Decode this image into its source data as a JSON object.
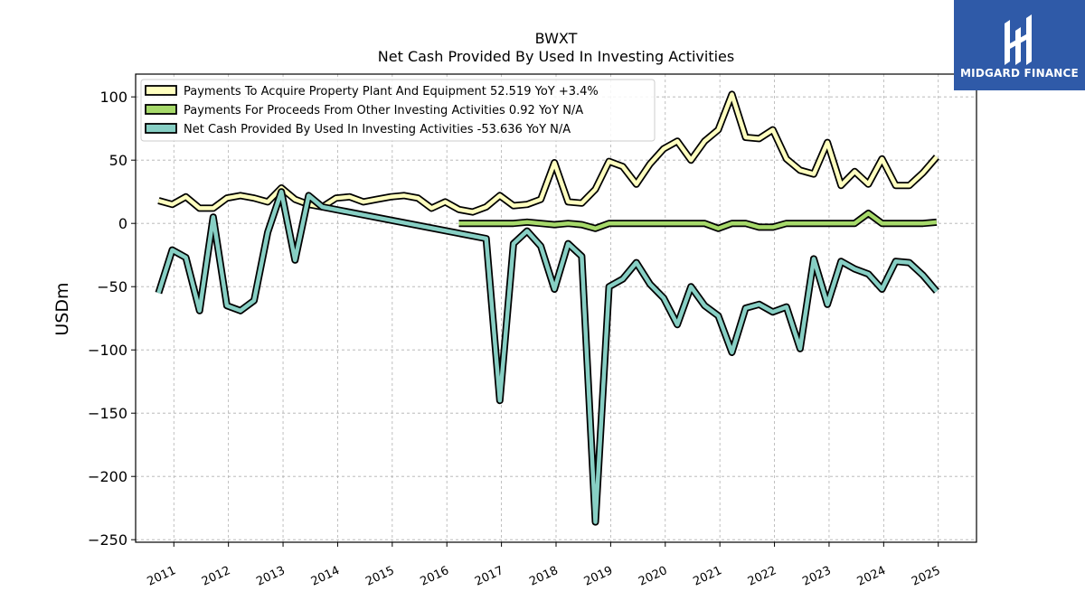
{
  "brand": {
    "name": "MIDGARD FINANCE",
    "icon": "midgard-logo-icon",
    "bg_color": "#2f5aa8"
  },
  "chart_data": {
    "type": "line",
    "title": "BWXT",
    "subtitle": "Net Cash Provided By Used In Investing Activities",
    "ylabel": "USDm",
    "xlabel": "",
    "ylim": [
      -252,
      118
    ],
    "xlim": [
      2010.3,
      2025.7
    ],
    "yticks": [
      100,
      50,
      0,
      -50,
      -100,
      -150,
      -200,
      -250
    ],
    "xticks": [
      2011,
      2012,
      2013,
      2014,
      2015,
      2016,
      2017,
      2018,
      2019,
      2020,
      2021,
      2022,
      2023,
      2024,
      2025
    ],
    "grid": true,
    "legend_position": "top-left",
    "series": [
      {
        "name": "Payments To Acquire Property Plant And Equipment  52.519 YoY +3.4%",
        "color": "#ffffbf",
        "points": [
          [
            2010.72,
            18
          ],
          [
            2010.97,
            15
          ],
          [
            2011.22,
            21
          ],
          [
            2011.47,
            12
          ],
          [
            2011.72,
            12
          ],
          [
            2011.97,
            20
          ],
          [
            2012.22,
            22
          ],
          [
            2012.47,
            20
          ],
          [
            2012.72,
            17
          ],
          [
            2012.97,
            28
          ],
          [
            2013.22,
            19
          ],
          [
            2013.47,
            15
          ],
          [
            2013.72,
            13
          ],
          [
            2013.97,
            20
          ],
          [
            2014.22,
            21
          ],
          [
            2014.47,
            17
          ],
          [
            2014.72,
            19
          ],
          [
            2014.97,
            21
          ],
          [
            2015.22,
            22
          ],
          [
            2015.47,
            20
          ],
          [
            2015.72,
            12
          ],
          [
            2015.97,
            17
          ],
          [
            2016.22,
            11
          ],
          [
            2016.47,
            9
          ],
          [
            2016.72,
            13
          ],
          [
            2016.97,
            22
          ],
          [
            2017.22,
            14
          ],
          [
            2017.47,
            15
          ],
          [
            2017.72,
            19
          ],
          [
            2017.97,
            48
          ],
          [
            2018.22,
            17
          ],
          [
            2018.47,
            16
          ],
          [
            2018.72,
            27
          ],
          [
            2018.97,
            49
          ],
          [
            2019.22,
            45
          ],
          [
            2019.47,
            31
          ],
          [
            2019.72,
            47
          ],
          [
            2019.97,
            59
          ],
          [
            2020.22,
            65
          ],
          [
            2020.47,
            50
          ],
          [
            2020.72,
            65
          ],
          [
            2020.97,
            74
          ],
          [
            2021.22,
            102
          ],
          [
            2021.47,
            68
          ],
          [
            2021.72,
            67
          ],
          [
            2021.97,
            74
          ],
          [
            2022.22,
            51
          ],
          [
            2022.47,
            42
          ],
          [
            2022.72,
            39
          ],
          [
            2022.97,
            64
          ],
          [
            2023.22,
            30
          ],
          [
            2023.47,
            41
          ],
          [
            2023.72,
            31
          ],
          [
            2023.97,
            51
          ],
          [
            2024.22,
            30
          ],
          [
            2024.47,
            30
          ],
          [
            2024.72,
            40
          ],
          [
            2024.97,
            52.519
          ]
        ]
      },
      {
        "name": "Payments For Proceeds From Other Investing Activities  0.92 YoY N/A",
        "color": "#a6d96a",
        "points": [
          [
            2016.22,
            0
          ],
          [
            2016.47,
            0
          ],
          [
            2016.72,
            0
          ],
          [
            2016.97,
            0
          ],
          [
            2017.22,
            0
          ],
          [
            2017.47,
            1
          ],
          [
            2017.72,
            0
          ],
          [
            2017.97,
            -1
          ],
          [
            2018.22,
            0
          ],
          [
            2018.47,
            -1
          ],
          [
            2018.72,
            -4
          ],
          [
            2018.97,
            0
          ],
          [
            2019.22,
            0
          ],
          [
            2019.47,
            0
          ],
          [
            2019.72,
            0
          ],
          [
            2019.97,
            0
          ],
          [
            2020.22,
            0
          ],
          [
            2020.47,
            0
          ],
          [
            2020.72,
            0
          ],
          [
            2020.97,
            -4
          ],
          [
            2021.22,
            0
          ],
          [
            2021.47,
            0
          ],
          [
            2021.72,
            -3
          ],
          [
            2021.97,
            -3
          ],
          [
            2022.22,
            0
          ],
          [
            2022.47,
            0
          ],
          [
            2022.72,
            0
          ],
          [
            2022.97,
            0
          ],
          [
            2023.22,
            0
          ],
          [
            2023.47,
            0
          ],
          [
            2023.72,
            8
          ],
          [
            2023.97,
            0
          ],
          [
            2024.22,
            0
          ],
          [
            2024.47,
            0
          ],
          [
            2024.72,
            0
          ],
          [
            2024.97,
            0.92
          ]
        ]
      },
      {
        "name": "Net Cash Provided By Used In Investing Activities  -53.636 YoY N/A",
        "color": "#87cfc4",
        "points": [
          [
            2010.72,
            -55
          ],
          [
            2010.97,
            -21
          ],
          [
            2011.22,
            -27
          ],
          [
            2011.47,
            -69
          ],
          [
            2011.72,
            5
          ],
          [
            2011.97,
            -65
          ],
          [
            2012.22,
            -69
          ],
          [
            2012.47,
            -61
          ],
          [
            2012.72,
            -7
          ],
          [
            2012.97,
            25
          ],
          [
            2013.22,
            -29
          ],
          [
            2013.47,
            22
          ],
          [
            2013.72,
            13
          ],
          [
            2016.72,
            -12
          ],
          [
            2016.97,
            -140
          ],
          [
            2017.22,
            -16
          ],
          [
            2017.47,
            -6
          ],
          [
            2017.72,
            -18
          ],
          [
            2017.97,
            -52
          ],
          [
            2018.22,
            -16
          ],
          [
            2018.47,
            -26
          ],
          [
            2018.72,
            -236
          ],
          [
            2018.97,
            -50
          ],
          [
            2019.22,
            -44
          ],
          [
            2019.47,
            -31
          ],
          [
            2019.72,
            -48
          ],
          [
            2019.97,
            -59
          ],
          [
            2020.22,
            -80
          ],
          [
            2020.47,
            -50
          ],
          [
            2020.72,
            -65
          ],
          [
            2020.97,
            -73
          ],
          [
            2021.22,
            -102
          ],
          [
            2021.47,
            -67
          ],
          [
            2021.72,
            -64
          ],
          [
            2021.97,
            -70
          ],
          [
            2022.22,
            -66
          ],
          [
            2022.47,
            -99
          ],
          [
            2022.72,
            -28
          ],
          [
            2022.97,
            -64
          ],
          [
            2023.22,
            -30
          ],
          [
            2023.47,
            -36
          ],
          [
            2023.72,
            -40
          ],
          [
            2023.97,
            -52
          ],
          [
            2024.22,
            -30
          ],
          [
            2024.47,
            -31
          ],
          [
            2024.72,
            -41
          ],
          [
            2024.97,
            -53.636
          ]
        ]
      }
    ]
  }
}
